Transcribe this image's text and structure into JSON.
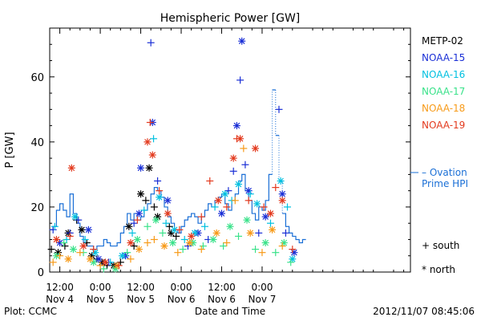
{
  "chart_data": {
    "type": "scatter",
    "title": "Hemispheric Power [GW]",
    "xlabel": "Date and Time",
    "ylabel": "P [GW]",
    "ylim": [
      0,
      75
    ],
    "xlim_hours": [
      -15,
      92
    ],
    "yticks": [
      0,
      20,
      40,
      60
    ],
    "xticks": [
      {
        "hour": -12,
        "time": "12:00",
        "date": "Nov 4"
      },
      {
        "hour": 0,
        "time": "0:00",
        "date": "Nov 5"
      },
      {
        "hour": 12,
        "time": "12:00",
        "date": "Nov 5"
      },
      {
        "hour": 24,
        "time": "0:00",
        "date": "Nov 6"
      },
      {
        "hour": 36,
        "time": "12:00",
        "date": "Nov 6"
      },
      {
        "hour": 48,
        "time": "0:00",
        "date": "Nov 7"
      }
    ],
    "legend_placement": "right",
    "series": [
      {
        "name": "METP-02",
        "color": "#000000",
        "points": [
          {
            "x": -14.5,
            "y": 7,
            "m": "+"
          },
          {
            "x": -12.5,
            "y": 6,
            "m": "*"
          },
          {
            "x": -10.5,
            "y": 8,
            "m": "+"
          },
          {
            "x": -9.5,
            "y": 12,
            "m": "*"
          },
          {
            "x": -7,
            "y": 16,
            "m": "+"
          },
          {
            "x": -5.5,
            "y": 13,
            "m": "*"
          },
          {
            "x": -4,
            "y": 9,
            "m": "+"
          },
          {
            "x": -2.5,
            "y": 5,
            "m": "*"
          },
          {
            "x": -1,
            "y": 4,
            "m": "+"
          },
          {
            "x": 0.5,
            "y": 3,
            "m": "*"
          },
          {
            "x": 2,
            "y": 2,
            "m": "+"
          },
          {
            "x": 4,
            "y": 2,
            "m": "*"
          },
          {
            "x": 6,
            "y": 3,
            "m": "+"
          },
          {
            "x": 8.5,
            "y": 14,
            "m": "*"
          },
          {
            "x": 10,
            "y": 8,
            "m": "+"
          },
          {
            "x": 12,
            "y": 24,
            "m": "*"
          },
          {
            "x": 14.5,
            "y": 32,
            "m": "*"
          },
          {
            "x": 13.5,
            "y": 22,
            "m": "+"
          },
          {
            "x": 16,
            "y": 20,
            "m": "+"
          },
          {
            "x": 17,
            "y": 17,
            "m": "*"
          },
          {
            "x": 20.5,
            "y": 14,
            "m": "+"
          },
          {
            "x": 21,
            "y": 12,
            "m": "*"
          },
          {
            "x": 22.5,
            "y": 11,
            "m": "+"
          }
        ]
      },
      {
        "name": "NOAA-15",
        "color": "#1a2fd6",
        "points": [
          {
            "x": -14,
            "y": 13,
            "m": "+"
          },
          {
            "x": -12,
            "y": 9,
            "m": "*"
          },
          {
            "x": -9,
            "y": 12,
            "m": "+"
          },
          {
            "x": -6.5,
            "y": 16,
            "m": "+"
          },
          {
            "x": -3.5,
            "y": 13,
            "m": "*"
          },
          {
            "x": -0.5,
            "y": 4,
            "m": "*"
          },
          {
            "x": 2.5,
            "y": 3,
            "m": "+"
          },
          {
            "x": 7.5,
            "y": 5,
            "m": "*"
          },
          {
            "x": 10,
            "y": 15,
            "m": "+"
          },
          {
            "x": 11.5,
            "y": 18,
            "m": "*"
          },
          {
            "x": 12,
            "y": 32,
            "m": "*"
          },
          {
            "x": 15,
            "y": 70.5,
            "m": "+"
          },
          {
            "x": 15.5,
            "y": 46,
            "m": "*"
          },
          {
            "x": 17,
            "y": 28,
            "m": "+"
          },
          {
            "x": 20,
            "y": 22,
            "m": "*"
          },
          {
            "x": 26,
            "y": 8,
            "m": "+"
          },
          {
            "x": 29,
            "y": 12,
            "m": "*"
          },
          {
            "x": 32,
            "y": 10,
            "m": "+"
          },
          {
            "x": 36,
            "y": 18,
            "m": "*"
          },
          {
            "x": 38,
            "y": 25,
            "m": "+"
          },
          {
            "x": 39.5,
            "y": 31,
            "m": "+"
          },
          {
            "x": 40.5,
            "y": 45,
            "m": "*"
          },
          {
            "x": 41.5,
            "y": 59,
            "m": "+"
          },
          {
            "x": 42,
            "y": 71,
            "m": "*"
          },
          {
            "x": 43,
            "y": 33,
            "m": "+"
          },
          {
            "x": 44,
            "y": 25,
            "m": "*"
          },
          {
            "x": 47,
            "y": 12,
            "m": "+"
          },
          {
            "x": 49,
            "y": 17,
            "m": "*"
          },
          {
            "x": 53,
            "y": 50,
            "m": "+"
          },
          {
            "x": 54,
            "y": 24,
            "m": "*"
          },
          {
            "x": 55,
            "y": 12,
            "m": "+"
          },
          {
            "x": 57.5,
            "y": 6,
            "m": "*"
          }
        ]
      },
      {
        "name": "NOAA-16",
        "color": "#00c0e0",
        "points": [
          {
            "x": -13.5,
            "y": 14,
            "m": "+"
          },
          {
            "x": -10,
            "y": 10,
            "m": "+"
          },
          {
            "x": -7.5,
            "y": 17,
            "m": "*"
          },
          {
            "x": -4.5,
            "y": 10,
            "m": "+"
          },
          {
            "x": -1.5,
            "y": 6,
            "m": "*"
          },
          {
            "x": 3,
            "y": 3,
            "m": "+"
          },
          {
            "x": 6.5,
            "y": 5,
            "m": "*"
          },
          {
            "x": 9.5,
            "y": 12,
            "m": "+"
          },
          {
            "x": 13,
            "y": 19,
            "m": "+"
          },
          {
            "x": 15.8,
            "y": 41,
            "m": "+"
          },
          {
            "x": 17.5,
            "y": 23,
            "m": "*"
          },
          {
            "x": 19.5,
            "y": 15,
            "m": "+"
          },
          {
            "x": 22,
            "y": 13,
            "m": "*"
          },
          {
            "x": 25,
            "y": 10,
            "m": "+"
          },
          {
            "x": 28,
            "y": 12,
            "m": "*"
          },
          {
            "x": 31,
            "y": 14,
            "m": "+"
          },
          {
            "x": 34,
            "y": 20,
            "m": "+"
          },
          {
            "x": 37,
            "y": 24,
            "m": "*"
          },
          {
            "x": 39,
            "y": 22,
            "m": "+"
          },
          {
            "x": 41,
            "y": 27,
            "m": "*"
          },
          {
            "x": 44.5,
            "y": 24,
            "m": "+"
          },
          {
            "x": 46.5,
            "y": 21,
            "m": "*"
          },
          {
            "x": 50.5,
            "y": 15,
            "m": "+"
          },
          {
            "x": 53.5,
            "y": 28,
            "m": "*"
          },
          {
            "x": 55.5,
            "y": 20,
            "m": "+"
          },
          {
            "x": 57,
            "y": 4,
            "m": "*"
          }
        ]
      },
      {
        "name": "NOAA-17",
        "color": "#3ae28a",
        "points": [
          {
            "x": -13,
            "y": 5,
            "m": "*"
          },
          {
            "x": -10.8,
            "y": 9,
            "m": "+"
          },
          {
            "x": -8,
            "y": 7,
            "m": "*"
          },
          {
            "x": -5,
            "y": 6,
            "m": "+"
          },
          {
            "x": -2,
            "y": 3,
            "m": "*"
          },
          {
            "x": 1,
            "y": 1,
            "m": "+"
          },
          {
            "x": 4.5,
            "y": 1,
            "m": "*"
          },
          {
            "x": 8,
            "y": 6,
            "m": "+"
          },
          {
            "x": 11,
            "y": 10,
            "m": "*"
          },
          {
            "x": 14,
            "y": 14,
            "m": "+"
          },
          {
            "x": 16.5,
            "y": 16,
            "m": "*"
          },
          {
            "x": 18.5,
            "y": 12,
            "m": "+"
          },
          {
            "x": 21.5,
            "y": 9,
            "m": "*"
          },
          {
            "x": 24.5,
            "y": 7,
            "m": "+"
          },
          {
            "x": 27.5,
            "y": 9,
            "m": "*"
          },
          {
            "x": 30.5,
            "y": 8,
            "m": "+"
          },
          {
            "x": 33.5,
            "y": 10,
            "m": "*"
          },
          {
            "x": 36.5,
            "y": 8,
            "m": "+"
          },
          {
            "x": 38.5,
            "y": 14,
            "m": "*"
          },
          {
            "x": 41,
            "y": 11,
            "m": "+"
          },
          {
            "x": 43.5,
            "y": 16,
            "m": "*"
          },
          {
            "x": 46,
            "y": 7,
            "m": "+"
          },
          {
            "x": 49,
            "y": 9,
            "m": "*"
          },
          {
            "x": 52,
            "y": 6,
            "m": "+"
          },
          {
            "x": 54.5,
            "y": 9,
            "m": "*"
          },
          {
            "x": 56.5,
            "y": 3,
            "m": "+"
          }
        ]
      },
      {
        "name": "NOAA-18",
        "color": "#f79a18",
        "points": [
          {
            "x": -14,
            "y": 3,
            "m": "+"
          },
          {
            "x": -12,
            "y": 5,
            "m": "+"
          },
          {
            "x": -9.5,
            "y": 4,
            "m": "*"
          },
          {
            "x": -6,
            "y": 6,
            "m": "+"
          },
          {
            "x": -3,
            "y": 4,
            "m": "*"
          },
          {
            "x": 0,
            "y": 2,
            "m": "+"
          },
          {
            "x": 5,
            "y": 2,
            "m": "*"
          },
          {
            "x": 9,
            "y": 4,
            "m": "+"
          },
          {
            "x": 11.5,
            "y": 7,
            "m": "*"
          },
          {
            "x": 14,
            "y": 9,
            "m": "+"
          },
          {
            "x": 16,
            "y": 10,
            "m": "+"
          },
          {
            "x": 19,
            "y": 8,
            "m": "*"
          },
          {
            "x": 23,
            "y": 6,
            "m": "+"
          },
          {
            "x": 26.5,
            "y": 9,
            "m": "*"
          },
          {
            "x": 30,
            "y": 7,
            "m": "+"
          },
          {
            "x": 34.5,
            "y": 12,
            "m": "*"
          },
          {
            "x": 37.5,
            "y": 9,
            "m": "+"
          },
          {
            "x": 40,
            "y": 22,
            "m": "+"
          },
          {
            "x": 42.5,
            "y": 38,
            "m": "+"
          },
          {
            "x": 44.5,
            "y": 12,
            "m": "*"
          },
          {
            "x": 48,
            "y": 6,
            "m": "+"
          },
          {
            "x": 51,
            "y": 13,
            "m": "*"
          },
          {
            "x": 54,
            "y": 8,
            "m": "+"
          }
        ]
      },
      {
        "name": "NOAA-19",
        "color": "#e33a1e",
        "points": [
          {
            "x": -13,
            "y": 10,
            "m": "*"
          },
          {
            "x": -9,
            "y": 11,
            "m": "+"
          },
          {
            "x": -8.5,
            "y": 32,
            "m": "*"
          },
          {
            "x": -5,
            "y": 8,
            "m": "*"
          },
          {
            "x": -2,
            "y": 7,
            "m": "+"
          },
          {
            "x": 1.5,
            "y": 3,
            "m": "*"
          },
          {
            "x": 5.5,
            "y": 2,
            "m": "+"
          },
          {
            "x": 9,
            "y": 9,
            "m": "*"
          },
          {
            "x": 11,
            "y": 16,
            "m": "+"
          },
          {
            "x": 14,
            "y": 40,
            "m": "*"
          },
          {
            "x": 14.8,
            "y": 46,
            "m": "+"
          },
          {
            "x": 15.5,
            "y": 36,
            "m": "*"
          },
          {
            "x": 17.5,
            "y": 25,
            "m": "+"
          },
          {
            "x": 20,
            "y": 18,
            "m": "*"
          },
          {
            "x": 23.5,
            "y": 13,
            "m": "+"
          },
          {
            "x": 27,
            "y": 11,
            "m": "*"
          },
          {
            "x": 30,
            "y": 17,
            "m": "+"
          },
          {
            "x": 32.5,
            "y": 28,
            "m": "+"
          },
          {
            "x": 35,
            "y": 22,
            "m": "*"
          },
          {
            "x": 37.5,
            "y": 20,
            "m": "+"
          },
          {
            "x": 39.5,
            "y": 35,
            "m": "*"
          },
          {
            "x": 40.5,
            "y": 41,
            "m": "+"
          },
          {
            "x": 41.5,
            "y": 41,
            "m": "*"
          },
          {
            "x": 44,
            "y": 22,
            "m": "+"
          },
          {
            "x": 46,
            "y": 38,
            "m": "*"
          },
          {
            "x": 48.5,
            "y": 20,
            "m": "+"
          },
          {
            "x": 50.5,
            "y": 18,
            "m": "*"
          },
          {
            "x": 52,
            "y": 26,
            "m": "+"
          },
          {
            "x": 54,
            "y": 22,
            "m": "*"
          },
          {
            "x": 57,
            "y": 7,
            "m": "+"
          }
        ]
      }
    ],
    "ovation": {
      "name": "Ovation Prime HPI",
      "color": "#1a6fd6",
      "points": [
        [
          -15,
          13
        ],
        [
          -14,
          14
        ],
        [
          -13,
          19
        ],
        [
          -12,
          21
        ],
        [
          -11,
          19
        ],
        [
          -10,
          17
        ],
        [
          -9,
          24
        ],
        [
          -8,
          18
        ],
        [
          -7,
          15
        ],
        [
          -6,
          11
        ],
        [
          -5,
          9
        ],
        [
          -4,
          8
        ],
        [
          -3,
          8
        ],
        [
          -2,
          7
        ],
        [
          -1,
          8
        ],
        [
          0,
          8
        ],
        [
          1,
          10
        ],
        [
          2,
          9
        ],
        [
          3,
          8
        ],
        [
          4,
          8
        ],
        [
          5,
          9
        ],
        [
          6,
          12
        ],
        [
          7,
          14
        ],
        [
          8,
          18
        ],
        [
          9,
          16
        ],
        [
          10,
          18
        ],
        [
          11,
          16
        ],
        [
          12,
          17
        ],
        [
          13,
          19
        ],
        [
          14,
          21
        ],
        [
          15,
          24
        ],
        [
          16,
          26
        ],
        [
          17,
          25
        ],
        [
          18,
          23
        ],
        [
          19,
          20
        ],
        [
          20,
          17
        ],
        [
          21,
          15
        ],
        [
          22,
          13
        ],
        [
          23,
          12
        ],
        [
          24,
          14
        ],
        [
          25,
          16
        ],
        [
          26,
          17
        ],
        [
          27,
          18
        ],
        [
          28,
          17
        ],
        [
          29,
          15
        ],
        [
          30,
          17
        ],
        [
          31,
          19
        ],
        [
          32,
          21
        ],
        [
          33,
          20
        ],
        [
          34,
          22
        ],
        [
          35,
          23
        ],
        [
          36,
          24
        ],
        [
          37,
          21
        ],
        [
          38,
          19
        ],
        [
          39,
          22
        ],
        [
          40,
          24
        ],
        [
          41,
          28
        ],
        [
          42,
          30
        ],
        [
          43,
          25
        ],
        [
          44,
          22
        ],
        [
          45,
          18
        ],
        [
          46,
          16
        ],
        [
          47,
          20
        ],
        [
          48,
          19
        ],
        [
          49,
          22
        ],
        [
          50,
          30
        ],
        [
          51,
          56
        ],
        [
          52,
          42
        ],
        [
          53,
          28
        ],
        [
          54,
          18
        ],
        [
          55,
          14
        ],
        [
          56,
          12
        ],
        [
          57,
          11
        ],
        [
          58,
          10
        ],
        [
          59,
          9
        ],
        [
          60,
          10
        ]
      ]
    },
    "legend_entries": [
      "METP-02",
      "NOAA-15",
      "NOAA-16",
      "NOAA-17",
      "NOAA-18",
      "NOAA-19"
    ],
    "ovation_legend_lines": [
      "– Ovation",
      "Prime HPI"
    ],
    "marker_key": [
      {
        "symbol": "+",
        "label": "south"
      },
      {
        "symbol": "*",
        "label": "north"
      }
    ]
  },
  "footer": {
    "plot_credit": "Plot: CCMC",
    "timestamp": "2012/11/07 08:45:06"
  }
}
